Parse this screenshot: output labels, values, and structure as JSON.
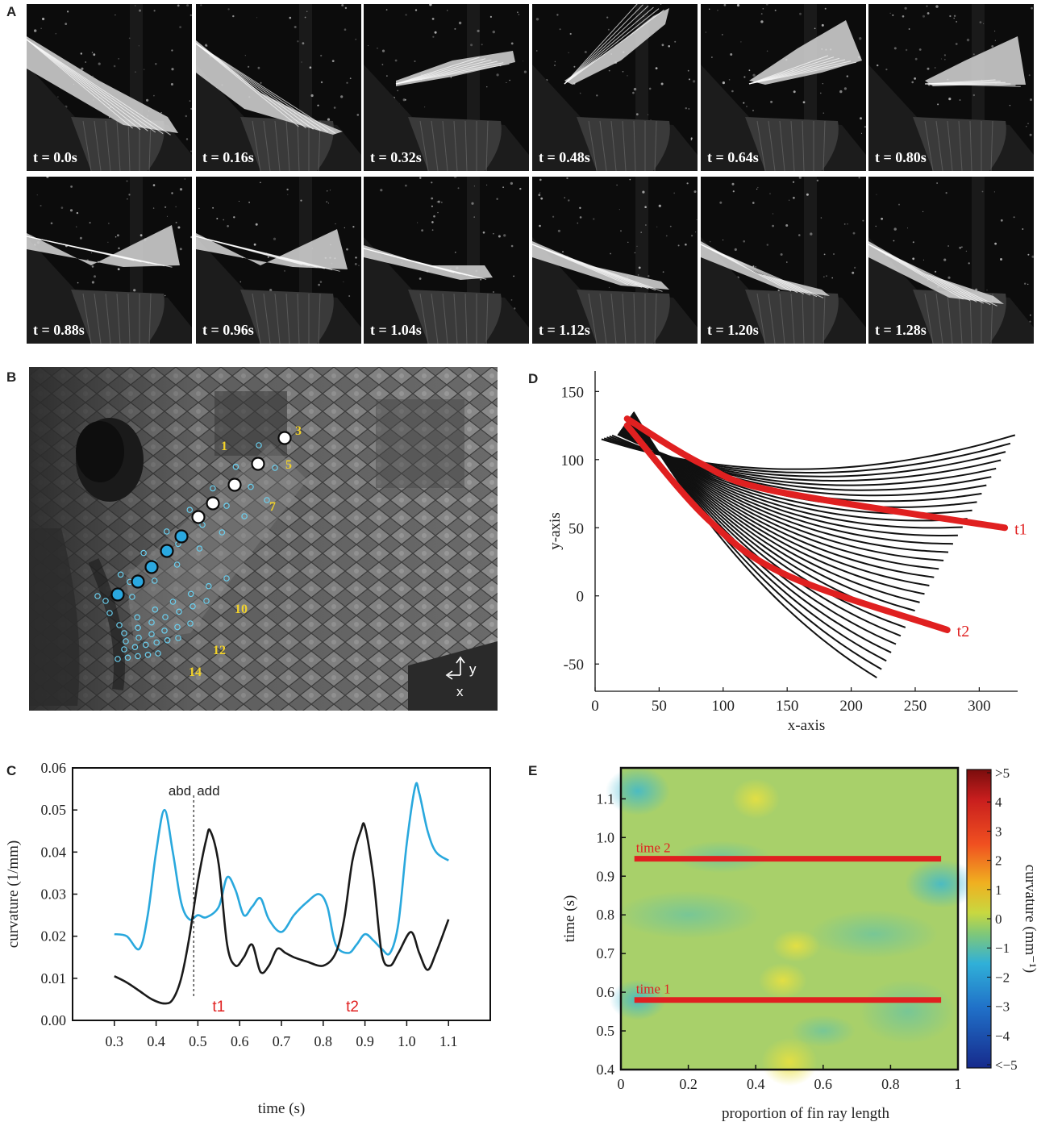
{
  "panel_labels": {
    "a": "A",
    "b": "B",
    "c": "C",
    "d": "D",
    "e": "E"
  },
  "panel_a": {
    "frames": [
      {
        "time": "t = 0.0s"
      },
      {
        "time": "t = 0.16s"
      },
      {
        "time": "t = 0.32s"
      },
      {
        "time": "t = 0.48s"
      },
      {
        "time": "t = 0.64s"
      },
      {
        "time": "t = 0.80s"
      },
      {
        "time": "t = 0.88s"
      },
      {
        "time": "t = 0.96s"
      },
      {
        "time": "t = 1.04s"
      },
      {
        "time": "t = 1.12s"
      },
      {
        "time": "t = 1.20s"
      },
      {
        "time": "t = 1.28s"
      }
    ]
  },
  "panel_b": {
    "ray_labels": [
      "1",
      "3",
      "5",
      "7",
      "10",
      "12",
      "14"
    ],
    "axis_y": "y",
    "axis_x": "x"
  },
  "chart_data": [
    {
      "panel": "C",
      "type": "line",
      "xlabel": "time (s)",
      "ylabel": "curvature (1/mm)",
      "xticks": [
        "0.3",
        "0.4",
        "0.5",
        "0.6",
        "0.7",
        "0.8",
        "0.9",
        "1.0",
        "1.1"
      ],
      "yticks": [
        "0.00",
        "0.01",
        "0.02",
        "0.03",
        "0.04",
        "0.05",
        "0.06"
      ],
      "xlim": [
        0.2,
        1.2
      ],
      "ylim": [
        0,
        0.06
      ],
      "phase_divider": 0.49,
      "annotations": {
        "abd": "abd",
        "add": "add",
        "t1": "t1",
        "t2": "t2"
      },
      "series": [
        {
          "color": "#29a8dd",
          "x": [
            0.3,
            0.33,
            0.36,
            0.38,
            0.4,
            0.42,
            0.44,
            0.46,
            0.48,
            0.5,
            0.52,
            0.55,
            0.57,
            0.59,
            0.61,
            0.63,
            0.65,
            0.67,
            0.7,
            0.73,
            0.76,
            0.79,
            0.81,
            0.83,
            0.86,
            0.88,
            0.9,
            0.92,
            0.94,
            0.96,
            0.98,
            1.0,
            1.02,
            1.03,
            1.05,
            1.07,
            1.1
          ],
          "values": [
            0.0205,
            0.02,
            0.017,
            0.025,
            0.04,
            0.05,
            0.04,
            0.028,
            0.024,
            0.025,
            0.0245,
            0.027,
            0.034,
            0.031,
            0.025,
            0.027,
            0.029,
            0.024,
            0.021,
            0.025,
            0.028,
            0.03,
            0.027,
            0.018,
            0.016,
            0.018,
            0.0205,
            0.019,
            0.017,
            0.016,
            0.023,
            0.042,
            0.0555,
            0.054,
            0.045,
            0.04,
            0.038
          ]
        },
        {
          "color": "#1a1a1a",
          "x": [
            0.3,
            0.33,
            0.36,
            0.39,
            0.42,
            0.44,
            0.46,
            0.48,
            0.5,
            0.52,
            0.53,
            0.55,
            0.57,
            0.59,
            0.61,
            0.63,
            0.65,
            0.67,
            0.69,
            0.71,
            0.73,
            0.76,
            0.8,
            0.83,
            0.85,
            0.87,
            0.89,
            0.9,
            0.92,
            0.94,
            0.96,
            0.98,
            1.01,
            1.03,
            1.05,
            1.07,
            1.1
          ],
          "values": [
            0.0105,
            0.009,
            0.007,
            0.005,
            0.004,
            0.005,
            0.01,
            0.02,
            0.033,
            0.043,
            0.045,
            0.037,
            0.018,
            0.013,
            0.015,
            0.018,
            0.0115,
            0.013,
            0.017,
            0.016,
            0.015,
            0.014,
            0.013,
            0.016,
            0.024,
            0.038,
            0.045,
            0.046,
            0.034,
            0.016,
            0.013,
            0.016,
            0.021,
            0.016,
            0.012,
            0.016,
            0.024
          ]
        }
      ]
    },
    {
      "panel": "D",
      "type": "line",
      "xlabel": "x-axis",
      "ylabel": "y-axis",
      "xticks": [
        "0",
        "50",
        "100",
        "150",
        "200",
        "250",
        "300"
      ],
      "yticks": [
        "-50",
        "0",
        "50",
        "100",
        "150"
      ],
      "xlim": [
        0,
        330
      ],
      "ylim": [
        -70,
        165
      ],
      "ray_count": 30,
      "highlight": [
        {
          "label": "t1",
          "start": [
            25,
            130
          ],
          "mid": [
            140,
            77
          ],
          "end": [
            320,
            50
          ]
        },
        {
          "label": "t2",
          "start": [
            25,
            125
          ],
          "mid": [
            150,
            15
          ],
          "end": [
            275,
            -25
          ]
        }
      ]
    },
    {
      "panel": "E",
      "type": "heatmap",
      "xlabel": "proportion of fin ray length",
      "ylabel": "time (s)",
      "xticks": [
        "0",
        "0.2",
        "0.4",
        "0.6",
        "0.8",
        "1"
      ],
      "yticks": [
        "0.4",
        "0.5",
        "0.6",
        "0.7",
        "0.8",
        "0.9",
        "1.0",
        "1.1"
      ],
      "xlim": [
        0,
        1
      ],
      "ylim": [
        0.4,
        1.18
      ],
      "colorbar": {
        "label": "curvature (mm⁻¹)",
        "ticks": [
          ">5",
          "4",
          "3",
          "2",
          "1",
          "0",
          "−1",
          "−2",
          "−3",
          "−4",
          "<−5"
        ]
      },
      "lines": [
        {
          "label": "time 1",
          "t": 0.58,
          "x_range": [
            0.04,
            0.95
          ]
        },
        {
          "label": "time 2",
          "t": 0.945,
          "x_range": [
            0.04,
            0.95
          ]
        }
      ],
      "accent_color": "#e02020"
    }
  ]
}
